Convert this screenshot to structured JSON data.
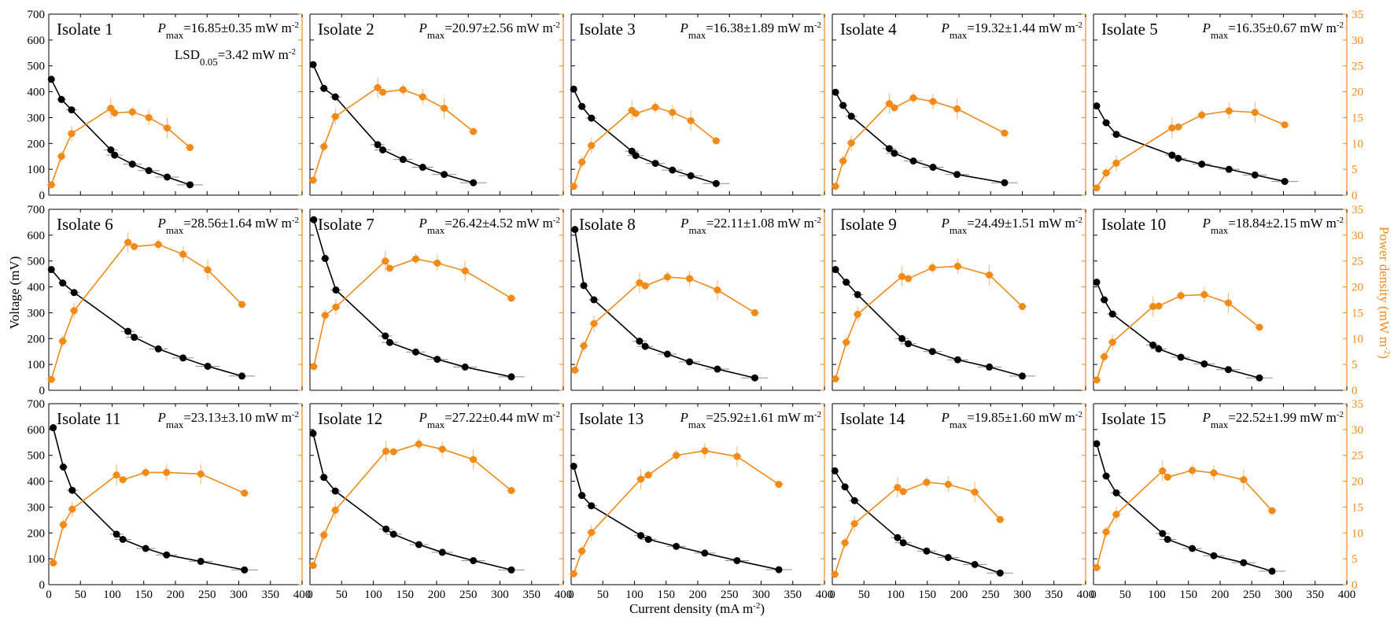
{
  "figure": {
    "x_label": "Current density (mA m",
    "x_label_tail": ")",
    "x_label_sup": "-2",
    "y_left_label": "Voltage (mV)",
    "y_right_label": "Power density (mW m",
    "y_right_label_tail": ")",
    "y_right_label_sup": "-2",
    "colors": {
      "voltage": "#000000",
      "power": "#f28a18",
      "power_error": "#f7b26a",
      "error": "#8c8c8c"
    }
  },
  "chart_data": [
    {
      "type": "line",
      "isolate": "Isolate 1",
      "pmax_symbol": "P",
      "pmax_sub": "max",
      "pmax_text": "=16.85±0.35 mW m",
      "pmax_sup": "-2",
      "lsd_prefix": "LSD",
      "lsd_sub": "0.05",
      "lsd_text": "=3.42 mW m",
      "lsd_sup": "-2",
      "xlim": [
        0,
        400
      ],
      "ylim_left": [
        0,
        700
      ],
      "ylim_right": [
        0,
        35
      ],
      "voltage": {
        "x": [
          4,
          20,
          36,
          98,
          104,
          132,
          158,
          187,
          223
        ],
        "y": [
          448,
          370,
          330,
          175,
          155,
          120,
          95,
          70,
          40
        ]
      },
      "power": {
        "x": [
          4,
          20,
          36,
          98,
          104,
          132,
          158,
          187,
          223
        ],
        "y": [
          2,
          7.5,
          11.9,
          16.8,
          15.9,
          16.1,
          15.0,
          13.0,
          9.2
        ]
      }
    },
    {
      "type": "line",
      "isolate": "Isolate 2",
      "pmax_symbol": "P",
      "pmax_sub": "max",
      "pmax_text": "=20.97±2.56 mW m",
      "pmax_sup": "-2",
      "xlim": [
        0,
        400
      ],
      "ylim_left": [
        0,
        700
      ],
      "ylim_right": [
        0,
        35
      ],
      "voltage": {
        "x": [
          5,
          22,
          40,
          107,
          115,
          147,
          178,
          212,
          258
        ],
        "y": [
          505,
          413,
          380,
          195,
          175,
          138,
          108,
          80,
          48
        ]
      },
      "power": {
        "x": [
          5,
          22,
          40,
          107,
          115,
          147,
          178,
          212,
          258
        ],
        "y": [
          2.9,
          9.4,
          15.2,
          20.8,
          19.9,
          20.4,
          19.0,
          16.8,
          12.3
        ]
      }
    },
    {
      "type": "line",
      "isolate": "Isolate 3",
      "pmax_symbol": "P",
      "pmax_sub": "max",
      "pmax_text": "=16.38±1.89 mW m",
      "pmax_sup": "-2",
      "xlim": [
        0,
        400
      ],
      "ylim_left": [
        0,
        700
      ],
      "ylim_right": [
        0,
        35
      ],
      "voltage": {
        "x": [
          4,
          17,
          32,
          96,
          102,
          133,
          160,
          189,
          229
        ],
        "y": [
          410,
          343,
          298,
          170,
          153,
          123,
          97,
          75,
          45
        ]
      },
      "power": {
        "x": [
          4,
          17,
          32,
          96,
          102,
          133,
          160,
          189,
          229
        ],
        "y": [
          1.7,
          6.4,
          9.6,
          16.4,
          15.8,
          17.0,
          16.0,
          14.4,
          10.5
        ]
      }
    },
    {
      "type": "line",
      "isolate": "Isolate 4",
      "pmax_symbol": "P",
      "pmax_sub": "max",
      "pmax_text": "=19.32±1.44 mW m",
      "pmax_sup": "-2",
      "xlim": [
        0,
        400
      ],
      "ylim_left": [
        0,
        700
      ],
      "ylim_right": [
        0,
        35
      ],
      "voltage": {
        "x": [
          5,
          17,
          30,
          90,
          98,
          128,
          159,
          197,
          272
        ],
        "y": [
          398,
          347,
          305,
          180,
          162,
          132,
          108,
          80,
          48
        ]
      },
      "power": {
        "x": [
          5,
          17,
          30,
          90,
          98,
          128,
          159,
          197,
          272
        ],
        "y": [
          1.7,
          6.6,
          10.1,
          17.7,
          16.9,
          18.8,
          18.1,
          16.7,
          12.0
        ]
      }
    },
    {
      "type": "line",
      "isolate": "Isolate 5",
      "pmax_symbol": "P",
      "pmax_sub": "max",
      "pmax_text": "=16.35±0.67 mW m",
      "pmax_sup": "-2",
      "xlim": [
        0,
        400
      ],
      "ylim_left": [
        0,
        700
      ],
      "ylim_right": [
        0,
        35
      ],
      "voltage": {
        "x": [
          5,
          20,
          36,
          124,
          134,
          171,
          214,
          255,
          302
        ],
        "y": [
          345,
          280,
          235,
          155,
          142,
          120,
          100,
          78,
          53
        ]
      },
      "power": {
        "x": [
          5,
          20,
          36,
          124,
          134,
          171,
          214,
          255,
          302
        ],
        "y": [
          1.4,
          4.3,
          6.2,
          13.0,
          13.2,
          15.5,
          16.3,
          16.0,
          13.6
        ]
      }
    },
    {
      "type": "line",
      "isolate": "Isolate 6",
      "pmax_symbol": "P",
      "pmax_sub": "max",
      "pmax_text": "=28.56±1.64 mW m",
      "pmax_sup": "-2",
      "xlim": [
        0,
        400
      ],
      "ylim_left": [
        0,
        700
      ],
      "ylim_right": [
        0,
        35
      ],
      "voltage": {
        "x": [
          4,
          22,
          40,
          125,
          135,
          173,
          212,
          251,
          305
        ],
        "y": [
          467,
          415,
          378,
          228,
          205,
          160,
          125,
          93,
          55
        ]
      },
      "power": {
        "x": [
          4,
          22,
          40,
          125,
          135,
          173,
          212,
          251,
          305
        ],
        "y": [
          2.1,
          9.5,
          15.4,
          28.6,
          27.8,
          28.2,
          26.3,
          23.3,
          16.6
        ]
      }
    },
    {
      "type": "line",
      "isolate": "Isolate 7",
      "pmax_symbol": "P",
      "pmax_sub": "max",
      "pmax_text": "=26.42±4.52 mW m",
      "pmax_sup": "-2",
      "xlim": [
        0,
        400
      ],
      "ylim_left": [
        0,
        700
      ],
      "ylim_right": [
        0,
        35
      ],
      "voltage": {
        "x": [
          6,
          24,
          41,
          119,
          126,
          167,
          201,
          245,
          318
        ],
        "y": [
          660,
          510,
          388,
          210,
          185,
          148,
          120,
          90,
          52
        ]
      },
      "power": {
        "x": [
          6,
          24,
          41,
          119,
          126,
          167,
          201,
          245,
          318
        ],
        "y": [
          4.6,
          14.5,
          16.1,
          25.0,
          23.6,
          25.4,
          24.6,
          23.1,
          17.8
        ]
      }
    },
    {
      "type": "line",
      "isolate": "Isolate 8",
      "pmax_symbol": "P",
      "pmax_sub": "max",
      "pmax_text": "=22.11±1.08 mW m",
      "pmax_sup": "-2",
      "xlim": [
        0,
        400
      ],
      "ylim_left": [
        0,
        700
      ],
      "ylim_right": [
        0,
        35
      ],
      "voltage": {
        "x": [
          6,
          20,
          36,
          108,
          117,
          152,
          187,
          231,
          290
        ],
        "y": [
          622,
          405,
          350,
          190,
          170,
          140,
          110,
          82,
          48
        ]
      },
      "power": {
        "x": [
          6,
          20,
          36,
          108,
          117,
          152,
          187,
          231,
          290
        ],
        "y": [
          3.9,
          8.6,
          12.9,
          20.8,
          20.2,
          21.9,
          21.6,
          19.4,
          15.0
        ]
      }
    },
    {
      "type": "line",
      "isolate": "Isolate 9",
      "pmax_symbol": "P",
      "pmax_sub": "max",
      "pmax_text": "=24.49±1.51 mW m",
      "pmax_sup": "-2",
      "xlim": [
        0,
        400
      ],
      "ylim_left": [
        0,
        700
      ],
      "ylim_right": [
        0,
        35
      ],
      "voltage": {
        "x": [
          5,
          22,
          40,
          110,
          120,
          158,
          198,
          248,
          300
        ],
        "y": [
          467,
          418,
          370,
          200,
          180,
          150,
          118,
          90,
          55
        ]
      },
      "power": {
        "x": [
          5,
          22,
          40,
          110,
          120,
          158,
          198,
          248,
          300
        ],
        "y": [
          2.2,
          9.3,
          14.7,
          22.0,
          21.6,
          23.7,
          24.0,
          22.3,
          16.2
        ]
      }
    },
    {
      "type": "line",
      "isolate": "Isolate 10",
      "pmax_symbol": "P",
      "pmax_sub": "max",
      "pmax_text": "=18.84±2.15 mW m",
      "pmax_sup": "-2",
      "xlim": [
        0,
        400
      ],
      "ylim_left": [
        0,
        700
      ],
      "ylim_right": [
        0,
        35
      ],
      "voltage": {
        "x": [
          5,
          17,
          30,
          94,
          103,
          138,
          175,
          213,
          262
        ],
        "y": [
          418,
          350,
          295,
          175,
          160,
          128,
          102,
          80,
          48
        ]
      },
      "power": {
        "x": [
          5,
          17,
          30,
          94,
          103,
          138,
          175,
          213,
          262
        ],
        "y": [
          2.0,
          6.5,
          9.3,
          16.2,
          16.3,
          18.3,
          18.5,
          16.9,
          12.2
        ]
      }
    },
    {
      "type": "line",
      "isolate": "Isolate 11",
      "pmax_symbol": "P",
      "pmax_sub": "max",
      "pmax_text": "=23.13±3.10 mW m",
      "pmax_sup": "-2",
      "xlim": [
        0,
        400
      ],
      "ylim_left": [
        0,
        700
      ],
      "ylim_right": [
        0,
        35
      ],
      "voltage": {
        "x": [
          7,
          23,
          37,
          107,
          117,
          153,
          186,
          240,
          309
        ],
        "y": [
          607,
          455,
          365,
          195,
          175,
          140,
          115,
          90,
          57
        ]
      },
      "power": {
        "x": [
          7,
          23,
          37,
          107,
          117,
          153,
          186,
          240,
          309
        ],
        "y": [
          4.2,
          11.6,
          14.6,
          21.2,
          20.3,
          21.7,
          21.7,
          21.4,
          17.7
        ]
      }
    },
    {
      "type": "line",
      "isolate": "Isolate 12",
      "pmax_symbol": "P",
      "pmax_sub": "max",
      "pmax_text": "=27.22±0.44 mW m",
      "pmax_sup": "-2",
      "xlim": [
        0,
        400
      ],
      "ylim_left": [
        0,
        700
      ],
      "ylim_right": [
        0,
        35
      ],
      "voltage": {
        "x": [
          5,
          22,
          40,
          120,
          132,
          172,
          209,
          258,
          318
        ],
        "y": [
          585,
          415,
          362,
          215,
          195,
          155,
          125,
          93,
          57
        ]
      },
      "power": {
        "x": [
          5,
          22,
          40,
          120,
          132,
          172,
          209,
          258,
          318
        ],
        "y": [
          3.7,
          9.6,
          14.4,
          25.8,
          25.7,
          27.2,
          26.2,
          24.2,
          18.2
        ]
      }
    },
    {
      "type": "line",
      "isolate": "Isolate 13",
      "pmax_symbol": "P",
      "pmax_sub": "max",
      "pmax_text": "=25.92±1.61 mW m",
      "pmax_sup": "-2",
      "xlim": [
        0,
        400
      ],
      "ylim_left": [
        0,
        700
      ],
      "ylim_right": [
        0,
        35
      ],
      "voltage": {
        "x": [
          4,
          17,
          32,
          110,
          122,
          166,
          211,
          262,
          328
        ],
        "y": [
          458,
          345,
          305,
          190,
          175,
          148,
          122,
          93,
          58
        ]
      },
      "power": {
        "x": [
          4,
          17,
          32,
          110,
          122,
          166,
          211,
          262,
          328
        ],
        "y": [
          2.1,
          6.5,
          10.1,
          20.4,
          21.2,
          25.0,
          25.9,
          24.8,
          19.4
        ]
      }
    },
    {
      "type": "line",
      "isolate": "Isolate 14",
      "pmax_symbol": "P",
      "pmax_sub": "max",
      "pmax_text": "=19.85±1.60 mW m",
      "pmax_sup": "-2",
      "xlim": [
        0,
        400
      ],
      "ylim_left": [
        0,
        700
      ],
      "ylim_right": [
        0,
        35
      ],
      "voltage": {
        "x": [
          4,
          20,
          35,
          103,
          112,
          149,
          183,
          225,
          265
        ],
        "y": [
          440,
          378,
          325,
          182,
          162,
          130,
          105,
          78,
          45
        ]
      },
      "power": {
        "x": [
          4,
          20,
          35,
          103,
          112,
          149,
          183,
          225,
          265
        ],
        "y": [
          2.0,
          8.1,
          11.8,
          18.8,
          18.0,
          19.8,
          19.4,
          17.9,
          12.6
        ]
      }
    },
    {
      "type": "line",
      "isolate": "Isolate 15",
      "pmax_symbol": "P",
      "pmax_sub": "max",
      "pmax_text": "=22.52±1.99 mW m",
      "pmax_sup": "-2",
      "xlim": [
        0,
        400
      ],
      "ylim_left": [
        0,
        700
      ],
      "ylim_right": [
        0,
        35
      ],
      "voltage": {
        "x": [
          5,
          20,
          36,
          109,
          117,
          156,
          190,
          237,
          282
        ],
        "y": [
          545,
          420,
          355,
          198,
          175,
          140,
          112,
          85,
          52
        ]
      },
      "power": {
        "x": [
          5,
          20,
          36,
          109,
          117,
          156,
          190,
          237,
          282
        ],
        "y": [
          3.3,
          10.2,
          13.6,
          22.0,
          20.8,
          22.1,
          21.6,
          20.3,
          14.3
        ]
      }
    }
  ]
}
